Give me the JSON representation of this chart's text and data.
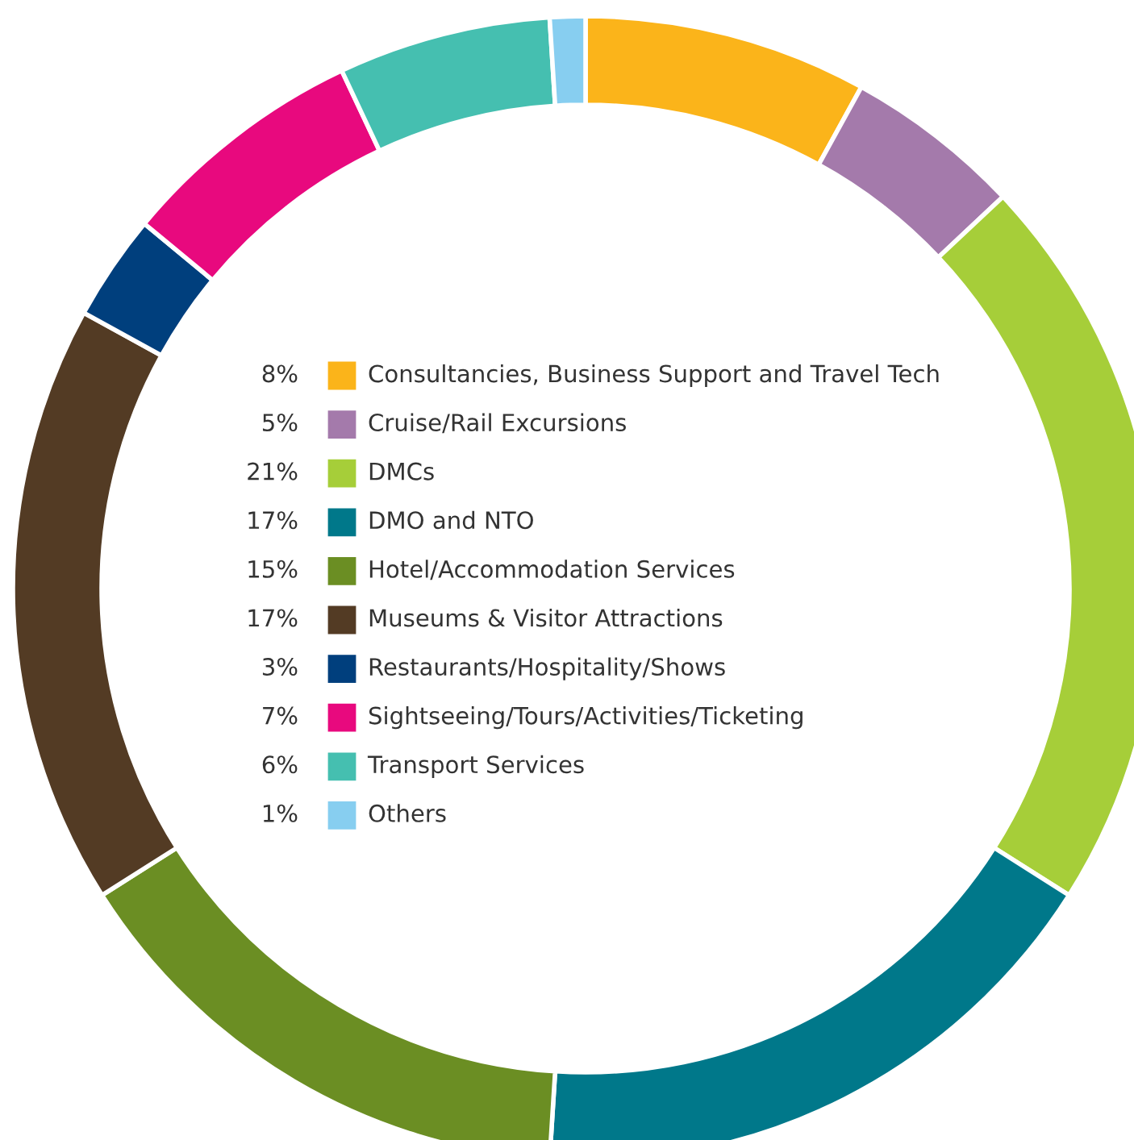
{
  "chart_data": {
    "type": "donut",
    "categories": [
      "Consultancies, Business Support and Travel Tech",
      "Cruise/Rail Excursions",
      "DMCs",
      "DMO and NTO",
      "Hotel/Accommodation Services",
      "Museums & Visitor Attractions",
      "Restaurants/Hospitality/Shows",
      "Sightseeing/Tours/Activities/Ticketing",
      "Transport Services",
      "Others"
    ],
    "values": [
      8,
      5,
      21,
      17,
      15,
      17,
      3,
      7,
      6,
      1
    ],
    "value_labels": [
      "8%",
      "5%",
      "21%",
      "17%",
      "15%",
      "17%",
      "3%",
      "7%",
      "6%",
      "1%"
    ],
    "colors": [
      "#fbb41a",
      "#a47aab",
      "#a6ce39",
      "#00788a",
      "#6b8e23",
      "#533b24",
      "#003f7d",
      "#e8097e",
      "#45bfb0",
      "#87cef0"
    ],
    "legend": "center"
  }
}
